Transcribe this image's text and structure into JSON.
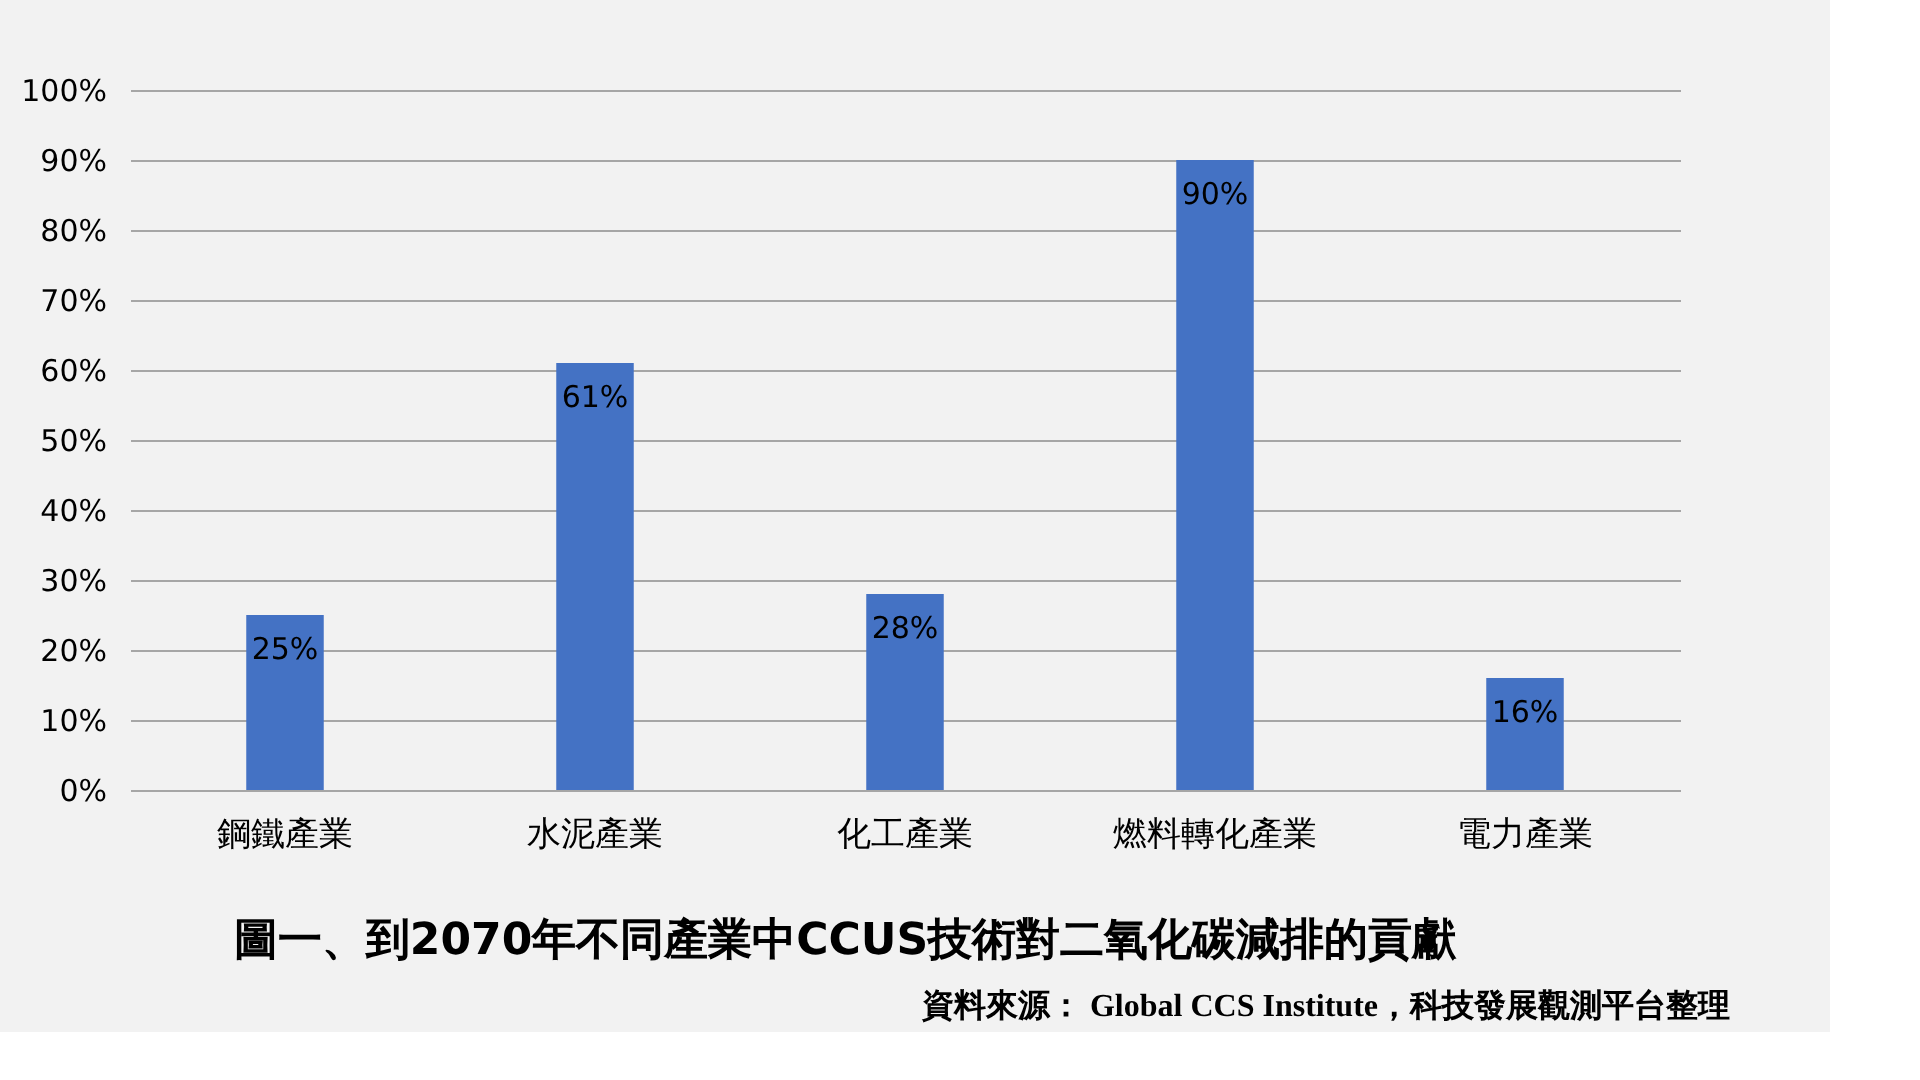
{
  "chart_data": {
    "type": "bar",
    "title": "圖一、到2070年不同產業中CCUS技術對二氧化碳減排的貢獻",
    "categories": [
      "鋼鐵產業",
      "水泥產業",
      "化工產業",
      "燃料轉化產業",
      "電力產業"
    ],
    "values": [
      25,
      61,
      28,
      90,
      16
    ],
    "value_labels": [
      "25%",
      "61%",
      "28%",
      "90%",
      "16%"
    ],
    "color": "#4472c4",
    "ylim": [
      0,
      100
    ],
    "yticks": [
      {
        "value": 0,
        "label": "0%"
      },
      {
        "value": 10,
        "label": "10%"
      },
      {
        "value": 20,
        "label": "20%"
      },
      {
        "value": 30,
        "label": "30%"
      },
      {
        "value": 40,
        "label": "40%"
      },
      {
        "value": 50,
        "label": "50%"
      },
      {
        "value": 60,
        "label": "60%"
      },
      {
        "value": 70,
        "label": "70%"
      },
      {
        "value": 80,
        "label": "80%"
      },
      {
        "value": 90,
        "label": "90%"
      },
      {
        "value": 100,
        "label": "100%"
      }
    ],
    "grid": "y",
    "annotations": [
      "資料來源： Global CCS Institute，科技發展觀測平台整理"
    ]
  }
}
